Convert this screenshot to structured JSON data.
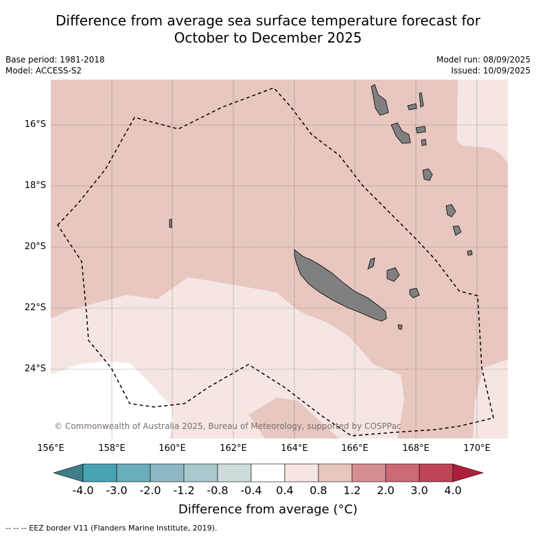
{
  "title": {
    "line1": "Difference from average sea surface temperature forecast for",
    "line2": "October to December 2025"
  },
  "meta_left": {
    "base_period": "Base period: 1981-2018",
    "model": "Model: ACCESS-S2"
  },
  "meta_right": {
    "model_run": "Model run: 08/09/2025",
    "issued": "Issued: 10/09/2025"
  },
  "map": {
    "lat_labels": [
      "16°S",
      "18°S",
      "20°S",
      "22°S",
      "24°S"
    ],
    "lon_labels": [
      "156°E",
      "158°E",
      "160°E",
      "162°E",
      "164°E",
      "166°E",
      "168°E",
      "170°E"
    ],
    "copyright": "© Commonwealth of Australia 2025, Bureau of Meteorology, supported by COSPPac",
    "colors": {
      "anomaly_0_4_to_0_8": "#f5e6e4",
      "anomaly_0_8_to_1_2": "#e8c7c1",
      "below_0_4": "#ffffff",
      "land": "#808080",
      "eez_border": "#000000"
    }
  },
  "colorbar": {
    "ticks": [
      "-4.0",
      "-3.0",
      "-2.0",
      "-1.2",
      "-0.8",
      "-0.4",
      "0.4",
      "0.8",
      "1.2",
      "2.0",
      "3.0",
      "4.0"
    ],
    "colors": [
      "#3e7d89",
      "#47a3b2",
      "#6aadbc",
      "#8db8c4",
      "#a9c7cc",
      "#cfdbdc",
      "#ffffff",
      "#f5e6e4",
      "#e8c7c1",
      "#d68e95",
      "#cb6a75",
      "#bd4556",
      "#b01e3e"
    ],
    "label": "Difference from average (°C)"
  },
  "footnote": "--  --  -- EEZ border V11 (Flanders Marine Institute, 2019)."
}
